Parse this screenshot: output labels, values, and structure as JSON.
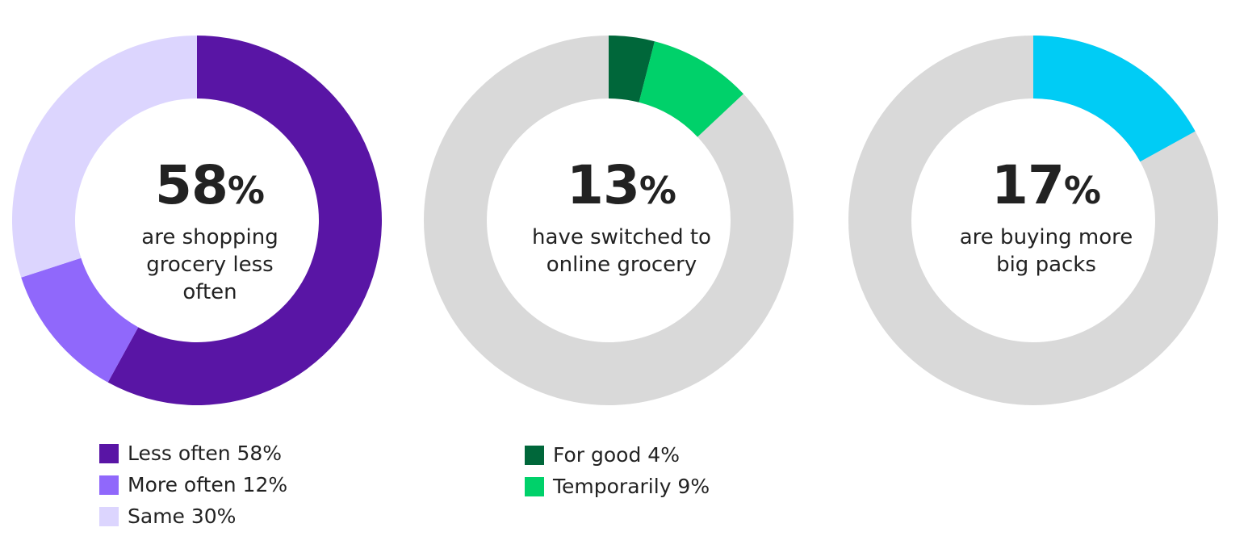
{
  "chart_data": [
    {
      "type": "pie",
      "headline": {
        "value": "58",
        "unit": "%"
      },
      "description": [
        "are shopping",
        "grocery less",
        "often"
      ],
      "slices": [
        {
          "label": "Less often 58%",
          "value": 58,
          "color": "#5915A5"
        },
        {
          "label": "More often 12%",
          "value": 12,
          "color": "#9068FB"
        },
        {
          "label": "Same 30%",
          "value": 30,
          "color": "#DCD5FE"
        }
      ],
      "remainder_color": "#D9D9D9",
      "legend": [
        {
          "label": "Less often 58%",
          "color": "#5915A5"
        },
        {
          "label": "More often 12%",
          "color": "#9068FB"
        },
        {
          "label": "Same 30%",
          "color": "#DCD5FE"
        }
      ]
    },
    {
      "type": "pie",
      "headline": {
        "value": "13",
        "unit": "%"
      },
      "description": [
        "have switched to",
        "online grocery"
      ],
      "slices": [
        {
          "label": "For good 4%",
          "value": 4,
          "color": "#00673A"
        },
        {
          "label": "Temporarily 9%",
          "value": 9,
          "color": "#00D16A"
        }
      ],
      "remainder_color": "#D9D9D9",
      "legend": [
        {
          "label": "For good 4%",
          "color": "#00673A"
        },
        {
          "label": "Temporarily 9%",
          "color": "#00D16A"
        }
      ]
    },
    {
      "type": "pie",
      "headline": {
        "value": "17",
        "unit": "%"
      },
      "description": [
        "are buying more",
        "big packs"
      ],
      "slices": [
        {
          "label": "",
          "value": 17,
          "color": "#00CCF5"
        }
      ],
      "remainder_color": "#D9D9D9",
      "legend": []
    }
  ]
}
